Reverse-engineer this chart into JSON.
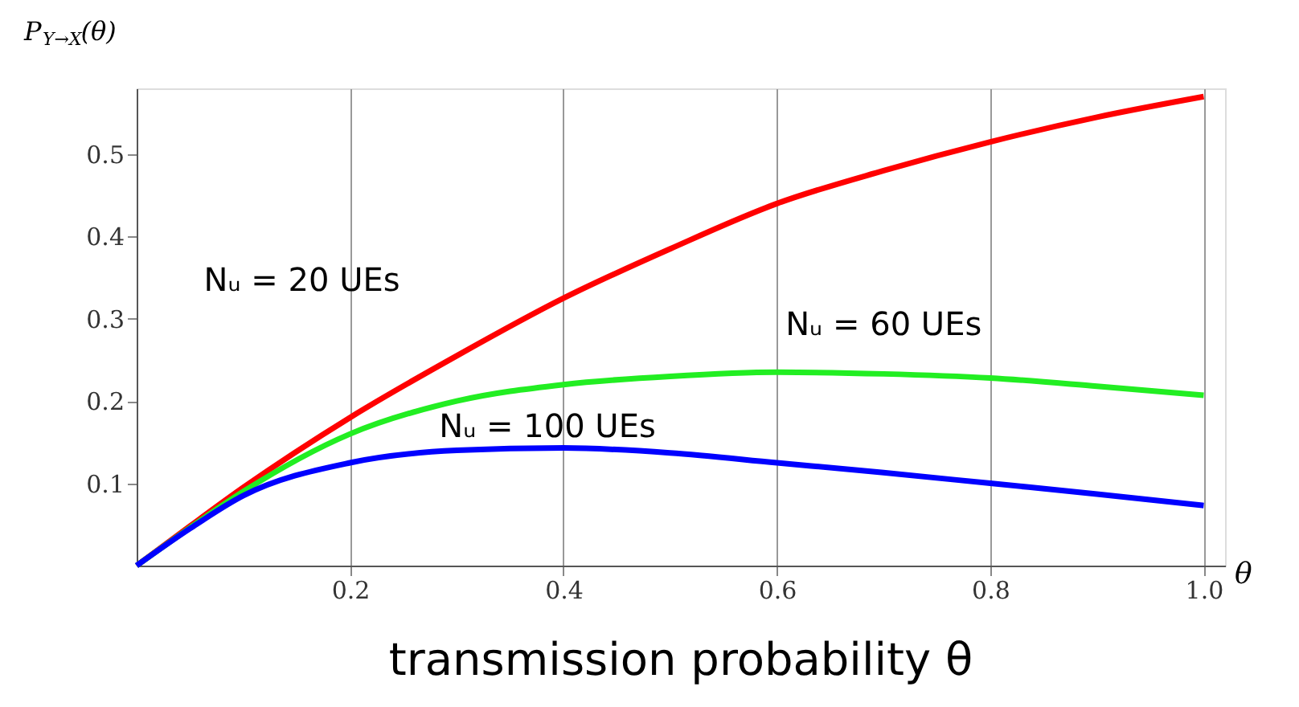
{
  "chart_data": {
    "type": "line",
    "ylabel": "P$_{Y→X}$(θ)",
    "xlabel": "transmission probability θ",
    "annotations": [
      "θ"
    ],
    "x": [
      0,
      0.05,
      0.1,
      0.2,
      0.3,
      0.4,
      0.5,
      0.6,
      0.7,
      0.8,
      0.9,
      1.0
    ],
    "series": [
      {
        "name": "Nᵤ = 20 UEs",
        "color": "#ff0000",
        "values": [
          0,
          0.048,
          0.095,
          0.18,
          0.255,
          0.325,
          0.385,
          0.44,
          0.48,
          0.515,
          0.545,
          0.57
        ]
      },
      {
        "name": "Nᵤ = 60 UEs",
        "color": "#22ee22",
        "values": [
          0,
          0.046,
          0.09,
          0.16,
          0.2,
          0.22,
          0.23,
          0.235,
          0.233,
          0.228,
          0.218,
          0.207
        ]
      },
      {
        "name": "Nᵤ = 100 UEs",
        "color": "#0000ff",
        "values": [
          0,
          0.045,
          0.085,
          0.125,
          0.14,
          0.143,
          0.137,
          0.125,
          0.113,
          0.1,
          0.087,
          0.073
        ]
      }
    ],
    "xlim": [
      0,
      1.02
    ],
    "ylim": [
      0,
      0.58
    ],
    "xticks": [
      {
        "value": 0.2,
        "label": "0.2"
      },
      {
        "value": 0.4,
        "label": "0.4"
      },
      {
        "value": 0.6,
        "label": "0.6"
      },
      {
        "value": 0.8,
        "label": "0.8"
      },
      {
        "value": 1.0,
        "label": "1.0"
      }
    ],
    "yticks": [
      0.1,
      0.2,
      0.3,
      0.4,
      0.5
    ],
    "grid": "x",
    "marker": "none",
    "line_style": "solid"
  }
}
